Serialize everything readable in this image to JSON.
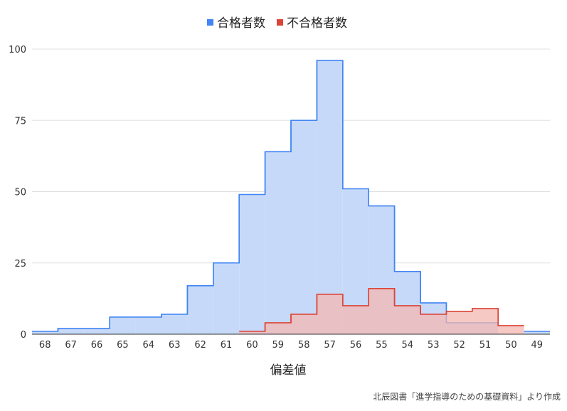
{
  "chart_data": {
    "type": "area",
    "xlabel": "偏差値",
    "ylabel": "",
    "ylim": [
      0,
      100
    ],
    "yticks": [
      0,
      25,
      50,
      75,
      100
    ],
    "grid": true,
    "legend_position": "top-center",
    "categories": [
      "68",
      "67",
      "66",
      "65",
      "64",
      "63",
      "62",
      "61",
      "60",
      "59",
      "58",
      "57",
      "56",
      "55",
      "54",
      "53",
      "52",
      "51",
      "50",
      "49"
    ],
    "series": [
      {
        "name": "合格者数",
        "color": "#4285f4",
        "fill": "#c6d9f8",
        "values": [
          1,
          2,
          2,
          6,
          6,
          7,
          17,
          25,
          49,
          64,
          75,
          96,
          51,
          45,
          22,
          11,
          4,
          4,
          null,
          1
        ]
      },
      {
        "name": "不合格者数",
        "color": "#db4437",
        "fill": "#f4b7b2",
        "values": [
          null,
          null,
          null,
          null,
          null,
          null,
          null,
          null,
          1,
          4,
          7,
          14,
          10,
          16,
          10,
          7,
          8,
          9,
          3,
          null
        ]
      }
    ],
    "source_note": "北辰図書「進学指導のための基礎資料」より作成"
  }
}
